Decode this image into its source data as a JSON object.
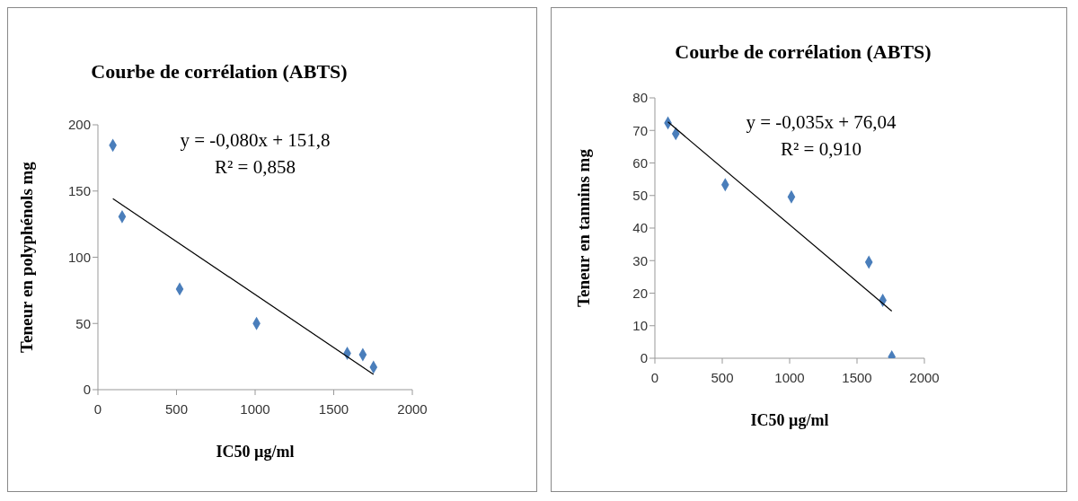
{
  "chart_data": [
    {
      "type": "scatter",
      "title": "Courbe de corrélation (ABTS)",
      "xlabel": "IC50 µg/ml",
      "ylabel": "Teneur en polyphénols mg",
      "xlim": [
        0,
        2000
      ],
      "xticks": [
        0,
        500,
        1000,
        1500,
        2000
      ],
      "ylim": [
        0,
        200
      ],
      "yticks": [
        0,
        50,
        100,
        150,
        200
      ],
      "marker": "diamond",
      "annotations": [
        "y = -0,080x + 151,8",
        "R² = 0,858"
      ],
      "series": [
        {
          "color": "#4a7ebb",
          "x": [
            95,
            154,
            520,
            1009,
            1586,
            1685,
            1753
          ],
          "values": [
            184.5,
            130.6,
            76,
            50,
            27.5,
            26.4,
            17
          ]
        },
        {
          "type": "line",
          "color": "#000000",
          "marker": "none",
          "x": [
            95,
            1753
          ],
          "values": [
            144.2,
            11.6
          ]
        }
      ]
    },
    {
      "type": "scatter",
      "title": "Courbe de corrélation (ABTS)",
      "xlabel": "IC50 µg/ml",
      "ylabel": "Teneur en tannins mg",
      "xlim": [
        0,
        2000
      ],
      "xticks": [
        0,
        500,
        1000,
        1500,
        2000
      ],
      "ylim": [
        0,
        80
      ],
      "yticks": [
        0,
        10,
        20,
        30,
        40,
        50,
        60,
        70,
        80
      ],
      "marker": "diamond",
      "annotations": [
        "y = -0,035x + 76,04",
        "R² = 0,910"
      ],
      "series": [
        {
          "color": "#4a7ebb",
          "x": [
            97,
            155,
            522,
            1013,
            1588,
            1691,
            1758
          ],
          "values": [
            72.3,
            69,
            53.3,
            49.6,
            29.5,
            17.8,
            0.4
          ]
        },
        {
          "type": "line",
          "color": "#000000",
          "marker": "none",
          "x": [
            97,
            1758
          ],
          "values": [
            72.6,
            14.5
          ]
        }
      ]
    }
  ]
}
